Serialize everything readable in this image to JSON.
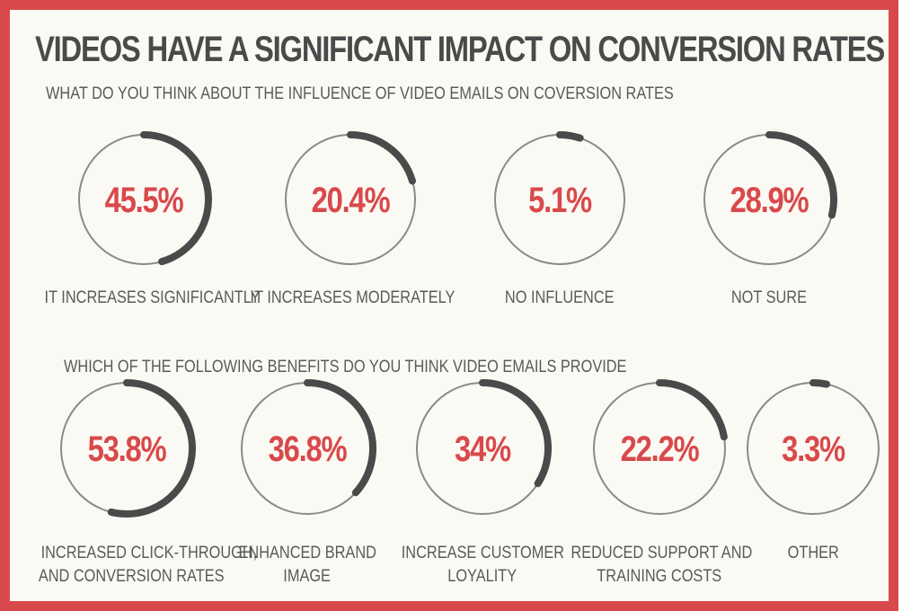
{
  "title": "VIDEOS HAVE A SIGNIFICANT IMPACT ON CONVERSION RATES",
  "colors": {
    "frame": "#d9494b",
    "background": "#fbf9f4",
    "value_text": "#d9494b",
    "arc": "#4a4a4a",
    "ring": "#8a8a8a"
  },
  "chart_data": [
    {
      "type": "pie",
      "title": "WHAT DO YOU THINK ABOUT THE INFLUENCE OF VIDEO EMAILS ON COVERSION RATES",
      "categories": [
        "IT INCREASES SIGNIFICANTLY",
        "IT INCREASES MODERATELY",
        "NO INFLUENCE",
        "NOT SURE"
      ],
      "values": [
        45.5,
        20.4,
        5.1,
        28.9
      ],
      "value_labels": [
        "45.5%",
        "20.4%",
        "5.1%",
        "28.9%"
      ]
    },
    {
      "type": "pie",
      "title": "WHICH OF THE FOLLOWING BENEFITS DO YOU THINK VIDEO EMAILS PROVIDE",
      "categories": [
        "INCREASED CLICK-THROUGH, AND CONVERSION RATES",
        "ENHANCED BRAND IMAGE",
        "INCREASE CUSTOMER LOYALITY",
        "REDUCED SUPPORT AND TRAINING COSTS",
        "OTHER"
      ],
      "label_lines": [
        [
          "INCREASED CLICK-THROUGH,",
          "AND CONVERSION RATES"
        ],
        [
          "ENHANCED BRAND",
          "IMAGE"
        ],
        [
          "INCREASE CUSTOMER",
          "LOYALITY"
        ],
        [
          "REDUCED SUPPORT AND",
          "TRAINING COSTS"
        ],
        [
          "OTHER"
        ]
      ],
      "values": [
        53.8,
        36.8,
        34,
        22.2,
        3.3
      ],
      "value_labels": [
        "53.8%",
        "36.8%",
        "34%",
        "22.2%",
        "3.3%"
      ]
    }
  ]
}
